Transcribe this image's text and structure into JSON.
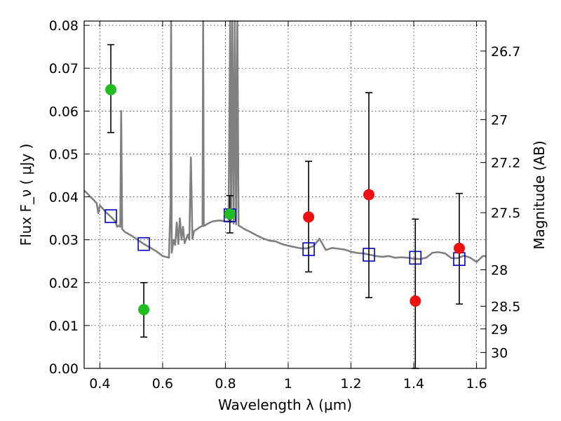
{
  "chart_data": {
    "type": "scatter",
    "xlabel": "Wavelength  λ (μm)",
    "ylabel": "Flux  F_ν  ( μJy )",
    "y2label": "Magnitude (AB)",
    "xlim": [
      0.35,
      1.63
    ],
    "ylim": [
      0.0,
      0.081
    ],
    "grid": true,
    "x_ticks": [
      {
        "value": 0.4,
        "label": "0.4"
      },
      {
        "value": 0.6,
        "label": "0.6"
      },
      {
        "value": 0.8,
        "label": "0.8"
      },
      {
        "value": 1.0,
        "label": "1"
      },
      {
        "value": 1.2,
        "label": "1.2"
      },
      {
        "value": 1.4,
        "label": "1.4"
      },
      {
        "value": 1.6,
        "label": "1.6"
      }
    ],
    "y_ticks": [
      {
        "value": 0.0,
        "label": "0.00"
      },
      {
        "value": 0.01,
        "label": "0.01"
      },
      {
        "value": 0.02,
        "label": "0.02"
      },
      {
        "value": 0.03,
        "label": "0.03"
      },
      {
        "value": 0.04,
        "label": "0.04"
      },
      {
        "value": 0.05,
        "label": "0.05"
      },
      {
        "value": 0.06,
        "label": "0.06"
      },
      {
        "value": 0.07,
        "label": "0.07"
      },
      {
        "value": 0.08,
        "label": "0.08"
      }
    ],
    "y2_ticks": [
      {
        "flux": 0.074,
        "label": "26.7"
      },
      {
        "flux": 0.058,
        "label": "27"
      },
      {
        "flux": 0.048,
        "label": "27.2"
      },
      {
        "flux": 0.0363,
        "label": "27.5"
      },
      {
        "flux": 0.023,
        "label": "28"
      },
      {
        "flux": 0.0145,
        "label": "28.5"
      },
      {
        "flux": 0.0092,
        "label": "29"
      },
      {
        "flux": 0.0037,
        "label": "30"
      }
    ],
    "series": [
      {
        "marker": "circle",
        "color": "#1fbf1f",
        "points": [
          {
            "x": 0.435,
            "y": 0.065,
            "lo": 0.055,
            "hi": 0.0755
          },
          {
            "x": 0.54,
            "y": 0.0137,
            "lo": 0.0073,
            "hi": 0.02
          },
          {
            "x": 0.814,
            "y": 0.036,
            "lo": 0.0316,
            "hi": 0.0403
          }
        ]
      },
      {
        "marker": "circle",
        "color": "#ee1111",
        "points": [
          {
            "x": 1.065,
            "y": 0.0353,
            "lo": 0.0225,
            "hi": 0.0483
          },
          {
            "x": 1.257,
            "y": 0.0405,
            "lo": 0.0165,
            "hi": 0.0643
          },
          {
            "x": 1.405,
            "y": 0.0157,
            "lo": 0.0,
            "hi": 0.0348
          },
          {
            "x": 1.545,
            "y": 0.028,
            "lo": 0.015,
            "hi": 0.0408
          }
        ]
      },
      {
        "marker": "open-square",
        "color": "#0000cc",
        "points": [
          {
            "x": 0.435,
            "y": 0.0355
          },
          {
            "x": 0.54,
            "y": 0.029
          },
          {
            "x": 0.814,
            "y": 0.0357
          },
          {
            "x": 1.065,
            "y": 0.0278
          },
          {
            "x": 1.257,
            "y": 0.0265
          },
          {
            "x": 1.405,
            "y": 0.0258
          },
          {
            "x": 1.545,
            "y": 0.0255
          }
        ]
      }
    ],
    "model_spectrum": {
      "color": "#808080",
      "points": [
        [
          0.35,
          0.0415
        ],
        [
          0.36,
          0.0408
        ],
        [
          0.37,
          0.04
        ],
        [
          0.38,
          0.0393
        ],
        [
          0.39,
          0.0385
        ],
        [
          0.395,
          0.0362
        ],
        [
          0.4,
          0.038
        ],
        [
          0.41,
          0.0372
        ],
        [
          0.42,
          0.0364
        ],
        [
          0.43,
          0.0357
        ],
        [
          0.44,
          0.035
        ],
        [
          0.45,
          0.0342
        ],
        [
          0.455,
          0.033
        ],
        [
          0.46,
          0.0333
        ],
        [
          0.465,
          0.033
        ],
        [
          0.468,
          0.06
        ],
        [
          0.471,
          0.0325
        ],
        [
          0.48,
          0.0318
        ],
        [
          0.5,
          0.031
        ],
        [
          0.52,
          0.03
        ],
        [
          0.54,
          0.029
        ],
        [
          0.56,
          0.0282
        ],
        [
          0.58,
          0.0273
        ],
        [
          0.6,
          0.0262
        ],
        [
          0.62,
          0.0258
        ],
        [
          0.625,
          0.038
        ],
        [
          0.627,
          0.081
        ],
        [
          0.629,
          0.027
        ],
        [
          0.635,
          0.03
        ],
        [
          0.64,
          0.0288
        ],
        [
          0.645,
          0.034
        ],
        [
          0.65,
          0.029
        ],
        [
          0.655,
          0.035
        ],
        [
          0.66,
          0.03
        ],
        [
          0.665,
          0.033
        ],
        [
          0.67,
          0.0292
        ],
        [
          0.68,
          0.0312
        ],
        [
          0.685,
          0.03
        ],
        [
          0.69,
          0.0492
        ],
        [
          0.695,
          0.0302
        ],
        [
          0.7,
          0.032
        ],
        [
          0.71,
          0.0325
        ],
        [
          0.72,
          0.033
        ],
        [
          0.727,
          0.0332
        ],
        [
          0.729,
          0.081
        ],
        [
          0.731,
          0.0332
        ],
        [
          0.74,
          0.0336
        ],
        [
          0.75,
          0.034
        ],
        [
          0.76,
          0.0343
        ],
        [
          0.77,
          0.0344
        ],
        [
          0.78,
          0.0345
        ],
        [
          0.79,
          0.0344
        ],
        [
          0.8,
          0.0343
        ],
        [
          0.81,
          0.0342
        ],
        [
          0.815,
          0.081
        ],
        [
          0.818,
          0.0341
        ],
        [
          0.822,
          0.081
        ],
        [
          0.826,
          0.0338
        ],
        [
          0.83,
          0.081
        ],
        [
          0.834,
          0.0336
        ],
        [
          0.838,
          0.081
        ],
        [
          0.842,
          0.0333
        ],
        [
          0.85,
          0.033
        ],
        [
          0.86,
          0.0325
        ],
        [
          0.88,
          0.0318
        ],
        [
          0.9,
          0.031
        ],
        [
          0.92,
          0.0303
        ],
        [
          0.94,
          0.0298
        ],
        [
          0.96,
          0.0296
        ],
        [
          0.98,
          0.029
        ],
        [
          1.0,
          0.0286
        ],
        [
          1.02,
          0.0283
        ],
        [
          1.04,
          0.028
        ],
        [
          1.06,
          0.028
        ],
        [
          1.08,
          0.0285
        ],
        [
          1.1,
          0.0302
        ],
        [
          1.12,
          0.0276
        ],
        [
          1.14,
          0.0281
        ],
        [
          1.16,
          0.0279
        ],
        [
          1.18,
          0.0277
        ],
        [
          1.2,
          0.0272
        ],
        [
          1.22,
          0.0269
        ],
        [
          1.24,
          0.0268
        ],
        [
          1.26,
          0.0265
        ],
        [
          1.28,
          0.0262
        ],
        [
          1.3,
          0.026
        ],
        [
          1.32,
          0.0262
        ],
        [
          1.34,
          0.0258
        ],
        [
          1.36,
          0.0259
        ],
        [
          1.38,
          0.0258
        ],
        [
          1.4,
          0.0256
        ],
        [
          1.42,
          0.0255
        ],
        [
          1.44,
          0.0258
        ],
        [
          1.46,
          0.027
        ],
        [
          1.48,
          0.0271
        ],
        [
          1.5,
          0.0268
        ],
        [
          1.52,
          0.0257
        ],
        [
          1.54,
          0.0257
        ],
        [
          1.56,
          0.0263
        ],
        [
          1.58,
          0.0258
        ],
        [
          1.6,
          0.0248
        ],
        [
          1.62,
          0.0262
        ],
        [
          1.63,
          0.0262
        ]
      ]
    }
  }
}
